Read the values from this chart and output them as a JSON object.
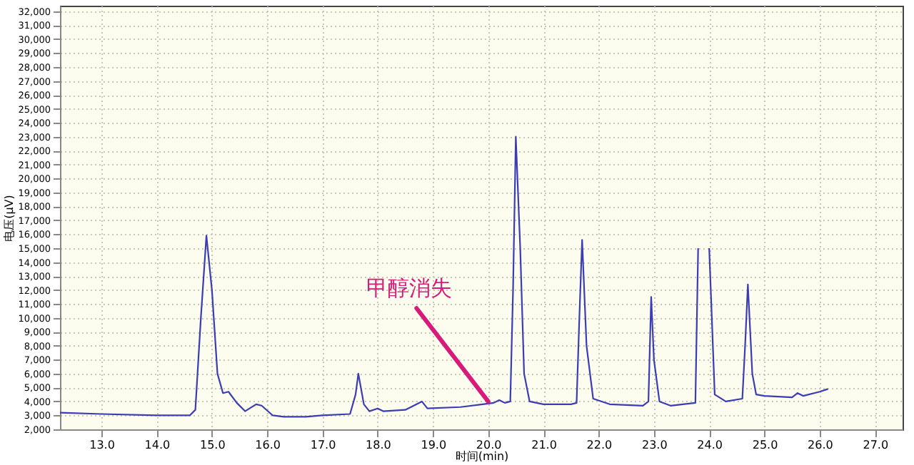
{
  "chart_data": {
    "type": "line",
    "xlabel": "时间(min)",
    "ylabel": "电压(µV)",
    "x": [
      12.25,
      13.0,
      14.0,
      14.6,
      14.7,
      14.8,
      14.9,
      15.0,
      15.1,
      15.2,
      15.3,
      15.45,
      15.6,
      15.8,
      15.9,
      16.1,
      16.3,
      16.7,
      17.0,
      17.5,
      17.6,
      17.65,
      17.75,
      17.85,
      18.0,
      18.1,
      18.5,
      18.8,
      18.9,
      19.5,
      19.9,
      20.1,
      20.2,
      20.3,
      20.4,
      20.45,
      20.5,
      20.58,
      20.65,
      20.75,
      21.0,
      21.5,
      21.6,
      21.65,
      21.7,
      21.78,
      21.9,
      22.2,
      22.8,
      22.9,
      22.95,
      23.0,
      23.1,
      23.3,
      23.75,
      23.8,
      23.85,
      23.95,
      24.0,
      24.1,
      24.3,
      24.6,
      24.65,
      24.7,
      24.78,
      24.85,
      25.0,
      25.5,
      25.6,
      25.7,
      26.0,
      26.15
    ],
    "series": [
      {
        "color": "#3c3cb4",
        "values": [
          3200,
          3100,
          3000,
          3000,
          3400,
          10000,
          15900,
          12000,
          6000,
          4600,
          4700,
          3900,
          3300,
          3800,
          3700,
          3000,
          2900,
          2900,
          3000,
          3100,
          4500,
          6000,
          3800,
          3300,
          3500,
          3300,
          3400,
          4000,
          3500,
          3600,
          3800,
          3900,
          4100,
          3900,
          4000,
          12000,
          23000,
          15000,
          6000,
          4000,
          3800,
          3800,
          3900,
          10000,
          15600,
          8000,
          4200,
          3800,
          3700,
          4000,
          11500,
          7000,
          4000,
          3700,
          3900,
          15000,
          null,
          null,
          15000,
          4500,
          4000,
          4200,
          8000,
          12400,
          6000,
          4500,
          4400,
          4300,
          4600,
          4400,
          4700,
          4900
        ]
      }
    ],
    "xlim": [
      12.25,
      27.5
    ],
    "ylim": [
      2000,
      32400
    ],
    "xticks": [
      {
        "value": 13,
        "label": "13.0"
      },
      {
        "value": 14,
        "label": "14.0"
      },
      {
        "value": 15,
        "label": "15.0"
      },
      {
        "value": 16,
        "label": "16.0"
      },
      {
        "value": 17,
        "label": "17.0"
      },
      {
        "value": 18,
        "label": "18.0"
      },
      {
        "value": 19,
        "label": "19.0"
      },
      {
        "value": 20,
        "label": "20.0"
      },
      {
        "value": 21,
        "label": "21.0"
      },
      {
        "value": 22,
        "label": "22.0"
      },
      {
        "value": 23,
        "label": "23.0"
      },
      {
        "value": 24,
        "label": "24.0"
      },
      {
        "value": 25,
        "label": "25.0"
      },
      {
        "value": 26,
        "label": "26.0"
      },
      {
        "value": 27,
        "label": "27.0"
      }
    ],
    "yticks": [
      {
        "value": 2000,
        "label": "2,000"
      },
      {
        "value": 3000,
        "label": "3,000"
      },
      {
        "value": 4000,
        "label": "4,000"
      },
      {
        "value": 5000,
        "label": "5,000"
      },
      {
        "value": 6000,
        "label": "6,000"
      },
      {
        "value": 7000,
        "label": "7,000"
      },
      {
        "value": 8000,
        "label": "8,000"
      },
      {
        "value": 9000,
        "label": "9,000"
      },
      {
        "value": 10000,
        "label": "10,000"
      },
      {
        "value": 11000,
        "label": "11,000"
      },
      {
        "value": 12000,
        "label": "12,000"
      },
      {
        "value": 13000,
        "label": "13,000"
      },
      {
        "value": 14000,
        "label": "14,000"
      },
      {
        "value": 15000,
        "label": "15,000"
      },
      {
        "value": 16000,
        "label": "16,000"
      },
      {
        "value": 17000,
        "label": "17,000"
      },
      {
        "value": 18000,
        "label": "18,000"
      },
      {
        "value": 19000,
        "label": "19,000"
      },
      {
        "value": 20000,
        "label": "20,000"
      },
      {
        "value": 21000,
        "label": "21,000"
      },
      {
        "value": 22000,
        "label": "22,000"
      },
      {
        "value": 23000,
        "label": "23,000"
      },
      {
        "value": 24000,
        "label": "24,000"
      },
      {
        "value": 25000,
        "label": "25,000"
      },
      {
        "value": 26000,
        "label": "26,000"
      },
      {
        "value": 27000,
        "label": "27,000"
      },
      {
        "value": 28000,
        "label": "28,000"
      },
      {
        "value": 29000,
        "label": "29,000"
      },
      {
        "value": 30000,
        "label": "30,000"
      },
      {
        "value": 31000,
        "label": "31,000"
      },
      {
        "value": 32000,
        "label": "32,000"
      }
    ],
    "annotations": [
      {
        "text": "甲醇消失",
        "x": 20.0,
        "y": 4000
      }
    ],
    "grid": true,
    "marker": "none",
    "line_style": "solid"
  }
}
